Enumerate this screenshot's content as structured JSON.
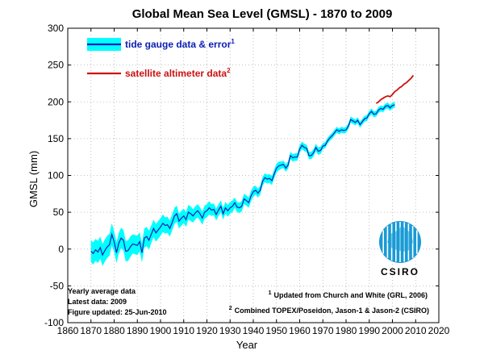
{
  "chart_data": {
    "type": "line",
    "title": "Global Mean Sea Level (GMSL) - 1870 to 2009",
    "xlabel": "Year",
    "ylabel": "GMSL (mm)",
    "xlim": [
      1860,
      2020
    ],
    "ylim": [
      -100,
      300
    ],
    "xticks": [
      1860,
      1870,
      1880,
      1890,
      1900,
      1910,
      1920,
      1930,
      1940,
      1950,
      1960,
      1970,
      1980,
      1990,
      2000,
      2010,
      2020
    ],
    "yticks": [
      -100,
      -50,
      0,
      50,
      100,
      150,
      200,
      250,
      300
    ],
    "grid": true,
    "series": [
      {
        "name": "tide gauge data & error",
        "superscript": "1",
        "line_color": "#0a1eb4",
        "band_color": "#00ffff",
        "x": [
          1870,
          1871,
          1872,
          1873,
          1874,
          1875,
          1876,
          1877,
          1878,
          1879,
          1880,
          1881,
          1882,
          1883,
          1884,
          1885,
          1886,
          1887,
          1888,
          1889,
          1890,
          1891,
          1892,
          1893,
          1894,
          1895,
          1896,
          1897,
          1898,
          1899,
          1900,
          1901,
          1902,
          1903,
          1904,
          1905,
          1906,
          1907,
          1908,
          1909,
          1910,
          1911,
          1912,
          1913,
          1914,
          1915,
          1916,
          1917,
          1918,
          1919,
          1920,
          1921,
          1922,
          1923,
          1924,
          1925,
          1926,
          1927,
          1928,
          1929,
          1930,
          1931,
          1932,
          1933,
          1934,
          1935,
          1936,
          1937,
          1938,
          1939,
          1940,
          1941,
          1942,
          1943,
          1944,
          1945,
          1946,
          1947,
          1948,
          1949,
          1950,
          1951,
          1952,
          1953,
          1954,
          1955,
          1956,
          1957,
          1958,
          1959,
          1960,
          1961,
          1962,
          1963,
          1964,
          1965,
          1966,
          1967,
          1968,
          1969,
          1970,
          1971,
          1972,
          1973,
          1974,
          1975,
          1976,
          1977,
          1978,
          1979,
          1980,
          1981,
          1982,
          1983,
          1984,
          1985,
          1986,
          1987,
          1988,
          1989,
          1990,
          1991,
          1992,
          1993,
          1994,
          1995,
          1996,
          1997,
          1998,
          1999,
          2000,
          2001
        ],
        "values": [
          -3,
          -6,
          -1,
          -4,
          2,
          -8,
          -2,
          3,
          6,
          20,
          10,
          -5,
          8,
          15,
          12,
          -3,
          -2,
          3,
          7,
          6,
          5,
          10,
          -5,
          15,
          17,
          12,
          20,
          28,
          22,
          26,
          30,
          35,
          32,
          33,
          28,
          36,
          45,
          48,
          38,
          42,
          45,
          40,
          50,
          48,
          45,
          49,
          52,
          48,
          42,
          50,
          52,
          56,
          53,
          54,
          47,
          53,
          58,
          48,
          56,
          52,
          56,
          58,
          63,
          57,
          56,
          58,
          68,
          66,
          63,
          72,
          78,
          80,
          76,
          80,
          92,
          97,
          95,
          96,
          93,
          102,
          110,
          113,
          114,
          115,
          110,
          114,
          127,
          124,
          125,
          125,
          136,
          141,
          138,
          137,
          127,
          127,
          131,
          138,
          133,
          134,
          140,
          141,
          147,
          151,
          154,
          158,
          162,
          160,
          162,
          161,
          162,
          167,
          176,
          174,
          172,
          175,
          169,
          173,
          177,
          178,
          184,
          187,
          183,
          184,
          189,
          191,
          190,
          194,
          195,
          192,
          195,
          196
        ],
        "error": [
          15,
          15,
          15,
          15,
          15,
          15,
          15,
          15,
          15,
          15,
          14,
          14,
          14,
          14,
          14,
          14,
          14,
          14,
          13,
          13,
          13,
          13,
          13,
          13,
          13,
          13,
          12,
          12,
          12,
          12,
          12,
          12,
          11,
          11,
          11,
          11,
          11,
          11,
          10,
          10,
          10,
          10,
          10,
          10,
          9,
          9,
          9,
          9,
          9,
          9,
          9,
          9,
          8,
          8,
          8,
          8,
          8,
          8,
          8,
          8,
          8,
          8,
          7,
          7,
          7,
          7,
          7,
          7,
          7,
          7,
          7,
          6,
          6,
          6,
          6,
          6,
          6,
          6,
          6,
          6,
          6,
          6,
          5,
          5,
          5,
          5,
          5,
          5,
          5,
          5,
          5,
          5,
          5,
          5,
          5,
          5,
          5,
          5,
          5,
          5,
          4,
          4,
          4,
          4,
          4,
          4,
          4,
          4,
          4,
          4,
          4,
          4,
          4,
          4,
          4,
          4,
          4,
          4,
          4,
          4,
          4,
          4,
          4,
          4,
          4,
          4,
          4,
          4,
          4,
          4,
          4,
          4
        ]
      },
      {
        "name": "satellite altimeter data",
        "superscript": "2",
        "line_color": "#cc1111",
        "x": [
          1993,
          1994,
          1995,
          1996,
          1997,
          1998,
          1999,
          2000,
          2001,
          2002,
          2003,
          2004,
          2005,
          2006,
          2007,
          2008,
          2009
        ],
        "values": [
          198,
          200,
          203,
          205,
          207,
          208,
          207,
          210,
          214,
          216,
          219,
          221,
          224,
          226,
          229,
          232,
          236
        ]
      }
    ],
    "legend_position": "top-left",
    "notes_left": [
      "Yearly average data",
      "Latest data: 2009",
      "Figure updated: 25-Jun-2010"
    ],
    "notes_right": [
      {
        "sup": "1",
        "text": "Updated from Church and White (GRL, 2006)"
      },
      {
        "sup": "2",
        "text": "Combined TOPEX/Poseidon, Jason-1 & Jason-2 (CSIRO)"
      }
    ],
    "logo_text": "CSIRO"
  }
}
